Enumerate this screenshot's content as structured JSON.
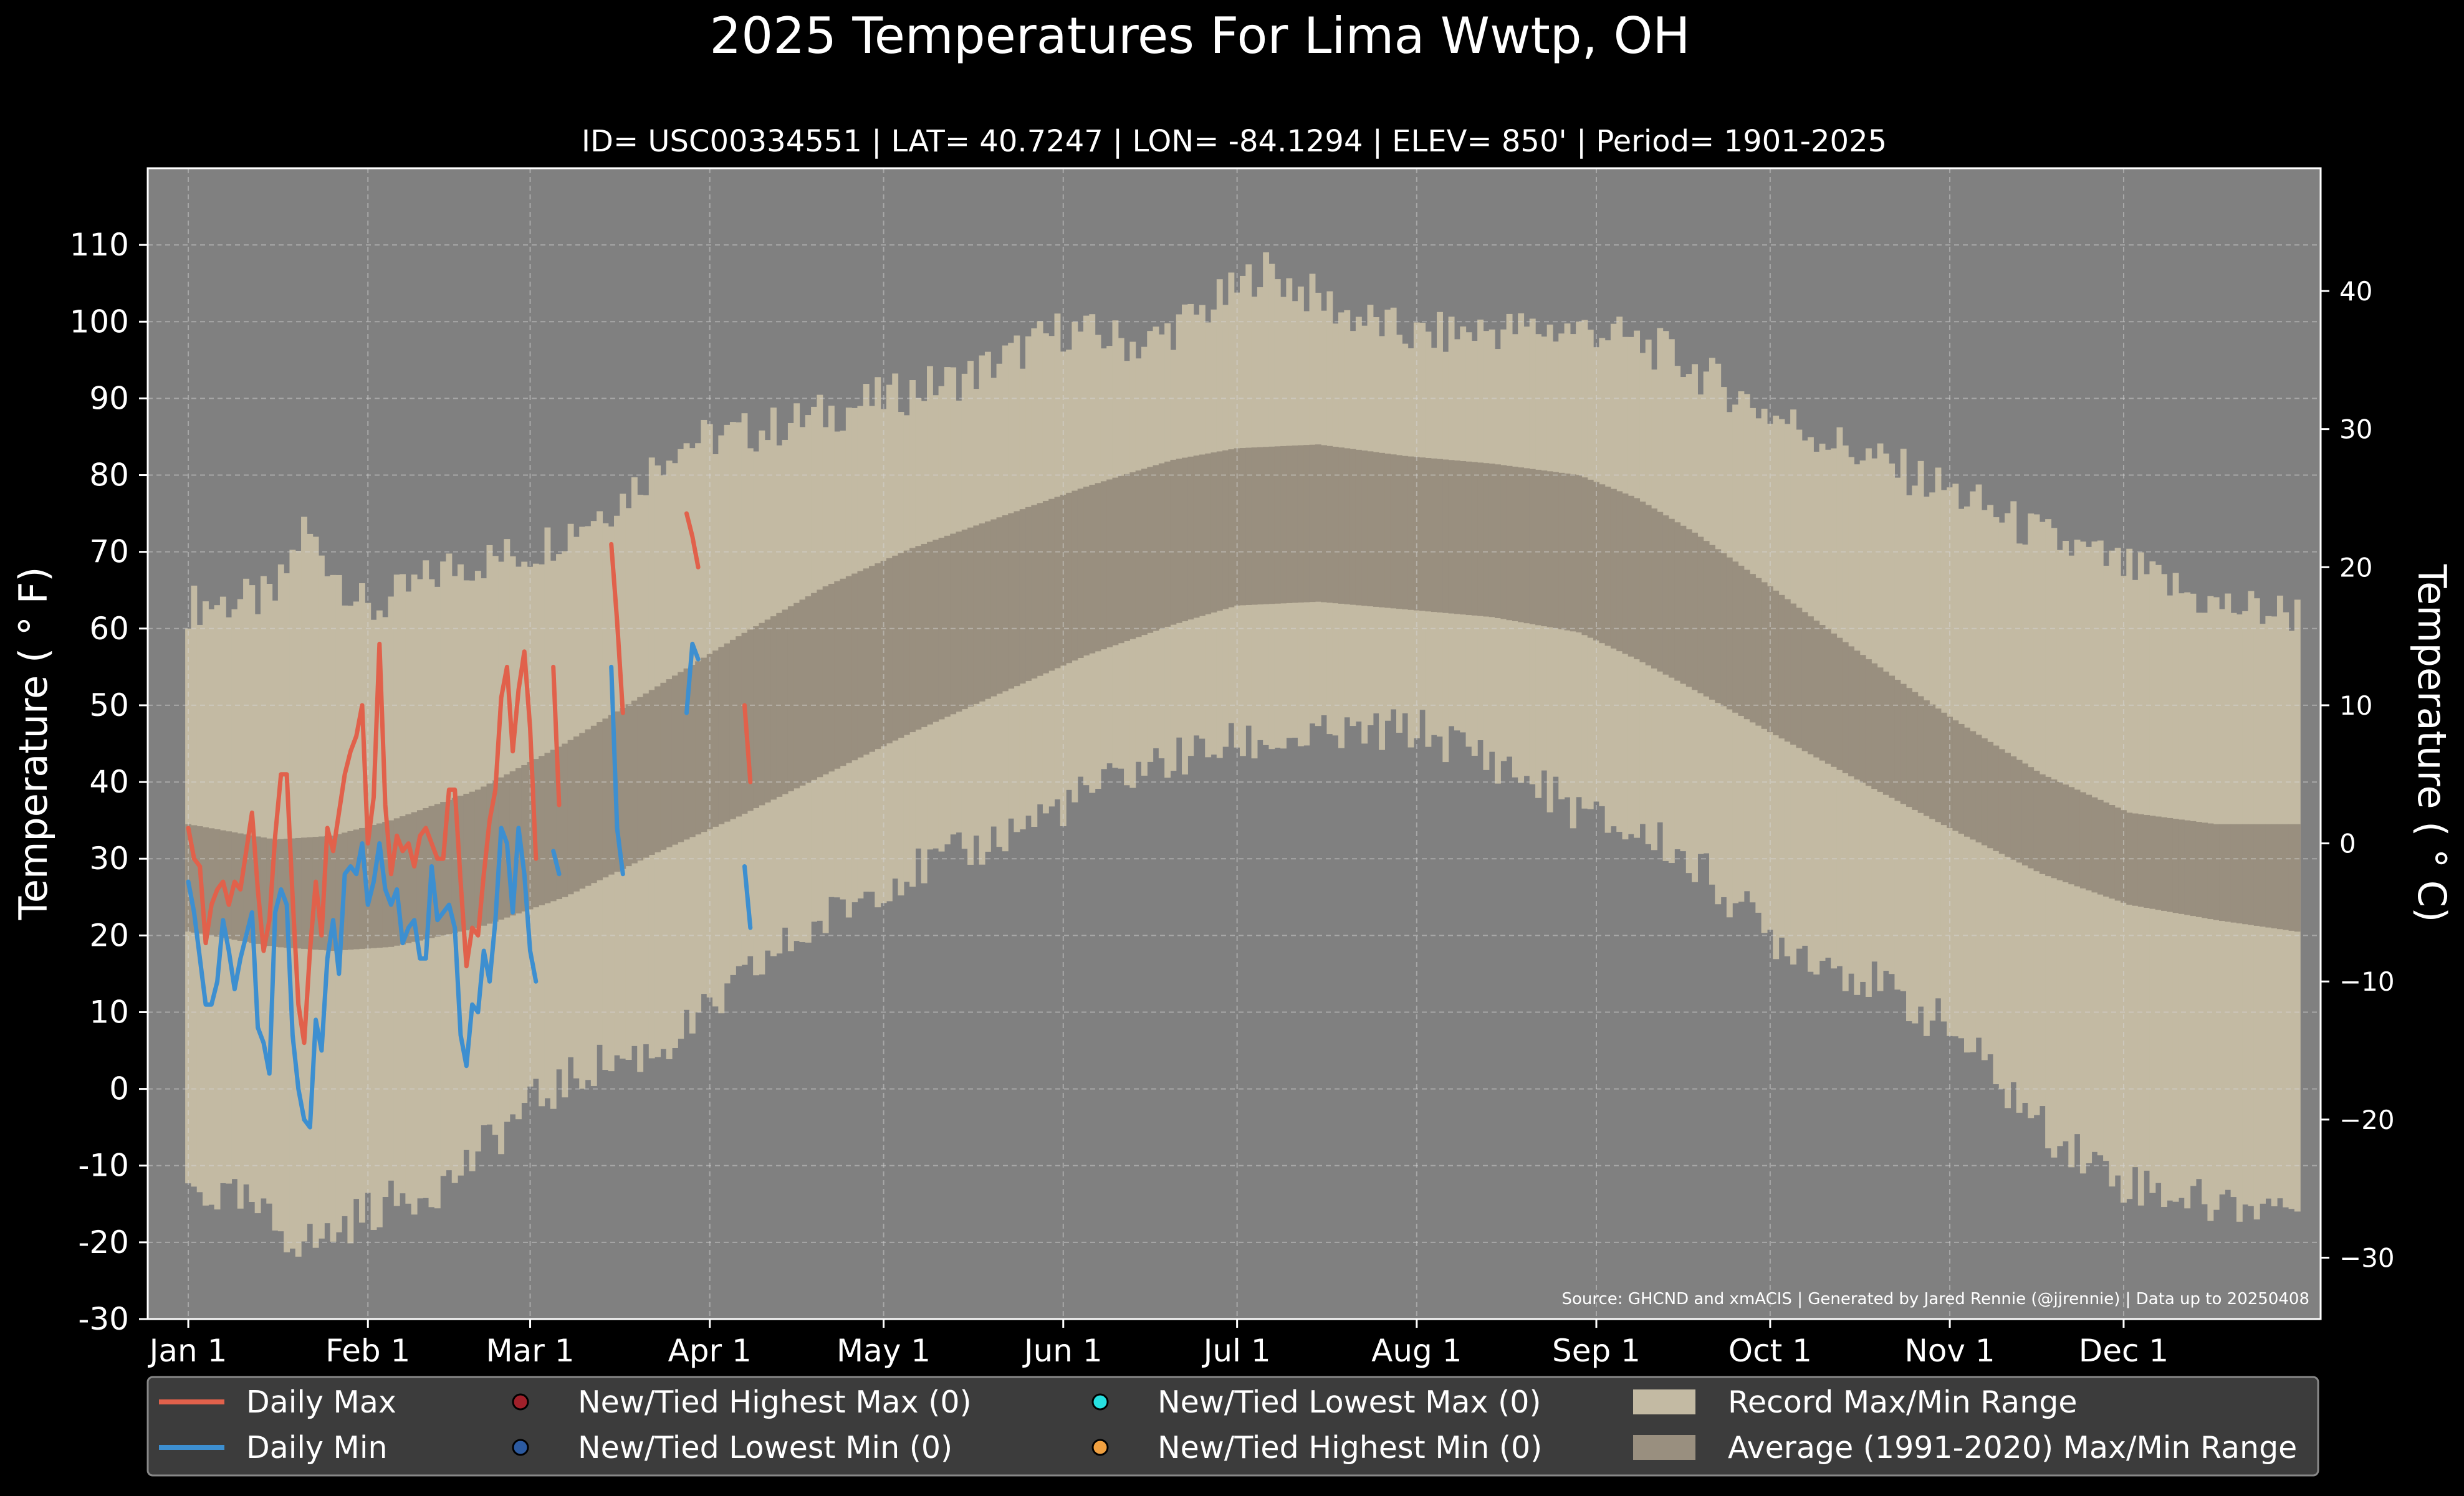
{
  "chart_data": {
    "type": "area",
    "title": "2025 Temperatures For Lima Wwtp, OH",
    "subtitle": "ID= USC00334551 | LAT= 40.7247 | LON= -84.1294 | ELEV= 850' | Period= 1901-2025",
    "ylabel": "Temperature ($^\\circ$F)",
    "ylabel_display": "Temperature ( ° F)",
    "ylabel_right": "Temperature ( ° C)",
    "source": "Source: GHCND and xmACIS | Generated by Jared Rennie (@jjrennie) | Data up to 20250408",
    "ylim": [
      -30,
      120
    ],
    "xlim_day": [
      0,
      365
    ],
    "grid": true,
    "legend_placement": "bottom",
    "y_ticks": [
      -30,
      -20,
      -10,
      0,
      10,
      20,
      30,
      40,
      50,
      60,
      70,
      80,
      90,
      100,
      110
    ],
    "y_ticks_c": [
      -30,
      -20,
      -10,
      0,
      10,
      20,
      30,
      40
    ],
    "x_ticks": [
      {
        "label": "Jan 1",
        "day": 0
      },
      {
        "label": "Feb 1",
        "day": 31
      },
      {
        "label": "Mar 1",
        "day": 59
      },
      {
        "label": "Apr 1",
        "day": 90
      },
      {
        "label": "May 1",
        "day": 120
      },
      {
        "label": "Jun 1",
        "day": 151
      },
      {
        "label": "Jul 1",
        "day": 181
      },
      {
        "label": "Aug 1",
        "day": 212
      },
      {
        "label": "Sep 1",
        "day": 243
      },
      {
        "label": "Oct 1",
        "day": 273
      },
      {
        "label": "Nov 1",
        "day": 304
      },
      {
        "label": "Dec 1",
        "day": 334
      }
    ],
    "record_max_anchors": [
      [
        0,
        63
      ],
      [
        15,
        64
      ],
      [
        20,
        73
      ],
      [
        31,
        62
      ],
      [
        45,
        68
      ],
      [
        59,
        70
      ],
      [
        75,
        77
      ],
      [
        84,
        84
      ],
      [
        100,
        86
      ],
      [
        120,
        90
      ],
      [
        135,
        93
      ],
      [
        151,
        99
      ],
      [
        165,
        97
      ],
      [
        181,
        104
      ],
      [
        185,
        107
      ],
      [
        200,
        101
      ],
      [
        212,
        98
      ],
      [
        225,
        99
      ],
      [
        243,
        99
      ],
      [
        255,
        96
      ],
      [
        273,
        88
      ],
      [
        288,
        83
      ],
      [
        304,
        78
      ],
      [
        320,
        72
      ],
      [
        334,
        68
      ],
      [
        350,
        63
      ],
      [
        364,
        62
      ]
    ],
    "record_min_anchors": [
      [
        0,
        -13
      ],
      [
        10,
        -15
      ],
      [
        17,
        -19
      ],
      [
        22,
        -20
      ],
      [
        31,
        -16
      ],
      [
        45,
        -12
      ],
      [
        59,
        -2
      ],
      [
        70,
        3
      ],
      [
        81,
        5
      ],
      [
        90,
        10
      ],
      [
        100,
        17
      ],
      [
        120,
        27
      ],
      [
        135,
        31
      ],
      [
        151,
        37
      ],
      [
        165,
        42
      ],
      [
        181,
        45
      ],
      [
        200,
        46
      ],
      [
        212,
        47
      ],
      [
        225,
        43
      ],
      [
        243,
        35
      ],
      [
        255,
        32
      ],
      [
        265,
        26
      ],
      [
        273,
        20
      ],
      [
        288,
        15
      ],
      [
        304,
        8
      ],
      [
        320,
        -5
      ],
      [
        334,
        -12
      ],
      [
        350,
        -15
      ],
      [
        364,
        -15
      ]
    ],
    "avg_max_anchors": [
      [
        0,
        34.5
      ],
      [
        15,
        32.5
      ],
      [
        25,
        33
      ],
      [
        35,
        35
      ],
      [
        50,
        39
      ],
      [
        65,
        45
      ],
      [
        80,
        52
      ],
      [
        95,
        59
      ],
      [
        110,
        65.5
      ],
      [
        125,
        70.5
      ],
      [
        140,
        74.5
      ],
      [
        155,
        78.5
      ],
      [
        170,
        82
      ],
      [
        181,
        83.5
      ],
      [
        195,
        84
      ],
      [
        210,
        82.5
      ],
      [
        225,
        81.5
      ],
      [
        240,
        80
      ],
      [
        250,
        77
      ],
      [
        260,
        72.5
      ],
      [
        273,
        65.5
      ],
      [
        290,
        56
      ],
      [
        304,
        48.5
      ],
      [
        320,
        41
      ],
      [
        335,
        36
      ],
      [
        350,
        34.5
      ],
      [
        364,
        34.5
      ]
    ],
    "avg_min_anchors": [
      [
        0,
        20.5
      ],
      [
        15,
        18.5
      ],
      [
        25,
        18
      ],
      [
        35,
        18.5
      ],
      [
        50,
        21
      ],
      [
        65,
        25
      ],
      [
        80,
        30.5
      ],
      [
        95,
        35.5
      ],
      [
        110,
        41
      ],
      [
        125,
        46.5
      ],
      [
        140,
        51.5
      ],
      [
        155,
        56.5
      ],
      [
        170,
        60.5
      ],
      [
        181,
        63
      ],
      [
        195,
        63.5
      ],
      [
        210,
        62.5
      ],
      [
        225,
        61.5
      ],
      [
        240,
        59.5
      ],
      [
        250,
        56
      ],
      [
        260,
        52
      ],
      [
        273,
        46.5
      ],
      [
        290,
        39.5
      ],
      [
        304,
        34
      ],
      [
        320,
        28
      ],
      [
        335,
        24
      ],
      [
        350,
        22
      ],
      [
        364,
        20.5
      ]
    ],
    "series": [
      {
        "name": "Daily Max",
        "color": "#e1614b",
        "segments": [
          [
            [
              0,
              34
            ],
            [
              1,
              30
            ],
            [
              2,
              29
            ],
            [
              3,
              19
            ],
            [
              4,
              24
            ],
            [
              5,
              26
            ],
            [
              6,
              27
            ],
            [
              7,
              24
            ],
            [
              8,
              27
            ],
            [
              9,
              26
            ],
            [
              10,
              31
            ],
            [
              11,
              36
            ],
            [
              12,
              26
            ],
            [
              13,
              18
            ],
            [
              14,
              22
            ],
            [
              15,
              33
            ],
            [
              16,
              41
            ],
            [
              17,
              41
            ],
            [
              18,
              25
            ],
            [
              19,
              11
            ],
            [
              20,
              6
            ],
            [
              21,
              18
            ],
            [
              22,
              27
            ],
            [
              23,
              20
            ],
            [
              24,
              34
            ],
            [
              25,
              31
            ],
            [
              26,
              36
            ],
            [
              27,
              41
            ],
            [
              28,
              44
            ],
            [
              29,
              46
            ],
            [
              30,
              50
            ],
            [
              31,
              32
            ],
            [
              32,
              38
            ],
            [
              33,
              58
            ],
            [
              34,
              37
            ],
            [
              35,
              28
            ],
            [
              36,
              33
            ],
            [
              37,
              31
            ],
            [
              38,
              32
            ],
            [
              39,
              29
            ],
            [
              40,
              33
            ],
            [
              41,
              34
            ],
            [
              42,
              32
            ],
            [
              43,
              30
            ],
            [
              44,
              30
            ],
            [
              45,
              39
            ],
            [
              46,
              39
            ],
            [
              47,
              27
            ],
            [
              48,
              16
            ],
            [
              49,
              21
            ],
            [
              50,
              20
            ],
            [
              51,
              28
            ],
            [
              52,
              35
            ],
            [
              53,
              39
            ],
            [
              54,
              51
            ],
            [
              55,
              55
            ],
            [
              56,
              44
            ],
            [
              57,
              52
            ],
            [
              58,
              57
            ],
            [
              59,
              47
            ],
            [
              60,
              30
            ]
          ],
          [
            [
              63,
              55
            ],
            [
              64,
              37
            ]
          ],
          [
            [
              73,
              71
            ],
            [
              74,
              61
            ],
            [
              75,
              49
            ]
          ],
          [
            [
              86,
              75
            ],
            [
              87,
              72
            ],
            [
              88,
              68
            ]
          ],
          [
            [
              96,
              50
            ],
            [
              97,
              40
            ]
          ]
        ]
      },
      {
        "name": "Daily Min",
        "color": "#3d8fd0",
        "segments": [
          [
            [
              0,
              27
            ],
            [
              1,
              23
            ],
            [
              2,
              17
            ],
            [
              3,
              11
            ],
            [
              4,
              11
            ],
            [
              5,
              14
            ],
            [
              6,
              22
            ],
            [
              7,
              18
            ],
            [
              8,
              13
            ],
            [
              9,
              17
            ],
            [
              10,
              20
            ],
            [
              11,
              23
            ],
            [
              12,
              8
            ],
            [
              13,
              6
            ],
            [
              14,
              2
            ],
            [
              15,
              23
            ],
            [
              16,
              26
            ],
            [
              17,
              24
            ],
            [
              18,
              7
            ],
            [
              19,
              0
            ],
            [
              20,
              -4
            ],
            [
              21,
              -5
            ],
            [
              22,
              9
            ],
            [
              23,
              5
            ],
            [
              24,
              17
            ],
            [
              25,
              22
            ],
            [
              26,
              15
            ],
            [
              27,
              28
            ],
            [
              28,
              29
            ],
            [
              29,
              28
            ],
            [
              30,
              32
            ],
            [
              31,
              24
            ],
            [
              32,
              27
            ],
            [
              33,
              32
            ],
            [
              34,
              26
            ],
            [
              35,
              24
            ],
            [
              36,
              26
            ],
            [
              37,
              19
            ],
            [
              38,
              21
            ],
            [
              39,
              22
            ],
            [
              40,
              17
            ],
            [
              41,
              17
            ],
            [
              42,
              29
            ],
            [
              43,
              22
            ],
            [
              44,
              23
            ],
            [
              45,
              24
            ],
            [
              46,
              21
            ],
            [
              47,
              7
            ],
            [
              48,
              3
            ],
            [
              49,
              11
            ],
            [
              50,
              10
            ],
            [
              51,
              18
            ],
            [
              52,
              14
            ],
            [
              53,
              22
            ],
            [
              54,
              34
            ],
            [
              55,
              32
            ],
            [
              56,
              23
            ],
            [
              57,
              34
            ],
            [
              58,
              28
            ],
            [
              59,
              18
            ],
            [
              60,
              14
            ]
          ],
          [
            [
              63,
              31
            ],
            [
              64,
              28
            ]
          ],
          [
            [
              73,
              55
            ],
            [
              74,
              34
            ],
            [
              75,
              28
            ]
          ],
          [
            [
              86,
              49
            ],
            [
              87,
              58
            ],
            [
              88,
              56
            ]
          ],
          [
            [
              96,
              29
            ],
            [
              97,
              21
            ]
          ]
        ]
      }
    ],
    "colors": {
      "background": "#000000",
      "plot_bg": "#808080",
      "record_range": "#c3baa3",
      "average_range": "#998f7f",
      "daily_max": "#e1614b",
      "daily_min": "#3d8fd0",
      "legend_bg": "#3c3c3c"
    },
    "legend": [
      {
        "label": "Daily Max",
        "kind": "line",
        "color": "#e1614b"
      },
      {
        "label": "Daily Min",
        "kind": "line",
        "color": "#3d8fd0"
      },
      {
        "label": "New/Tied Highest Max (0)",
        "kind": "dot",
        "color": "#a0202a"
      },
      {
        "label": "New/Tied Lowest Min (0)",
        "kind": "dot",
        "color": "#2c5aa0"
      },
      {
        "label": "New/Tied Lowest Max (0)",
        "kind": "dot",
        "color": "#27e0e0"
      },
      {
        "label": "New/Tied Highest Min (0)",
        "kind": "dot",
        "color": "#f0a040"
      },
      {
        "label": "Record Max/Min Range",
        "kind": "patch",
        "color": "#c3baa3"
      },
      {
        "label": "Average (1991-2020) Max/Min Range",
        "kind": "patch",
        "color": "#998f7f"
      }
    ]
  }
}
